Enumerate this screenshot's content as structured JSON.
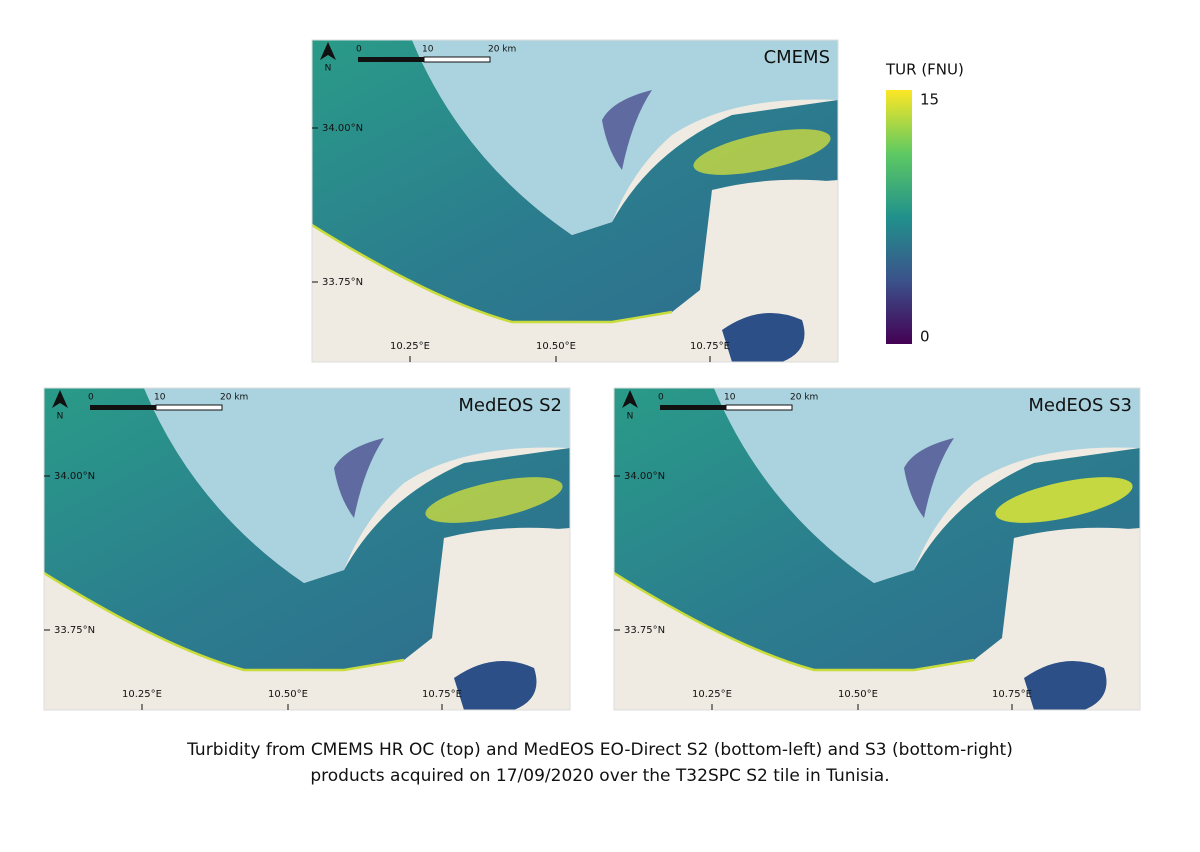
{
  "colorbar": {
    "title": "TUR (FNU)",
    "max_label": "15",
    "min_label": "0"
  },
  "panels": [
    {
      "title": "CMEMS",
      "north": "N",
      "scale_labels": [
        "0",
        "10",
        "20 km"
      ],
      "lat_labels": [
        "34.00°N",
        "33.75°N"
      ],
      "lon_labels": [
        "10.25°E",
        "10.50°E",
        "10.75°E"
      ]
    },
    {
      "title": "MedEOS S2",
      "north": "N",
      "scale_labels": [
        "0",
        "10",
        "20 km"
      ],
      "lat_labels": [
        "34.00°N",
        "33.75°N"
      ],
      "lon_labels": [
        "10.25°E",
        "10.50°E",
        "10.75°E"
      ]
    },
    {
      "title": "MedEOS S3",
      "north": "N",
      "scale_labels": [
        "0",
        "10",
        "20 km"
      ],
      "lat_labels": [
        "34.00°N",
        "33.75°N"
      ],
      "lon_labels": [
        "10.25°E",
        "10.50°E",
        "10.75°E"
      ]
    }
  ],
  "caption": [
    "Turbidity from CMEMS HR OC (top) and MedEOS EO-Direct S2 (bottom-left) and S3 (bottom-right)",
    "products acquired on 17/09/2020 over the T32SPC S2 tile in Tunisia."
  ]
}
